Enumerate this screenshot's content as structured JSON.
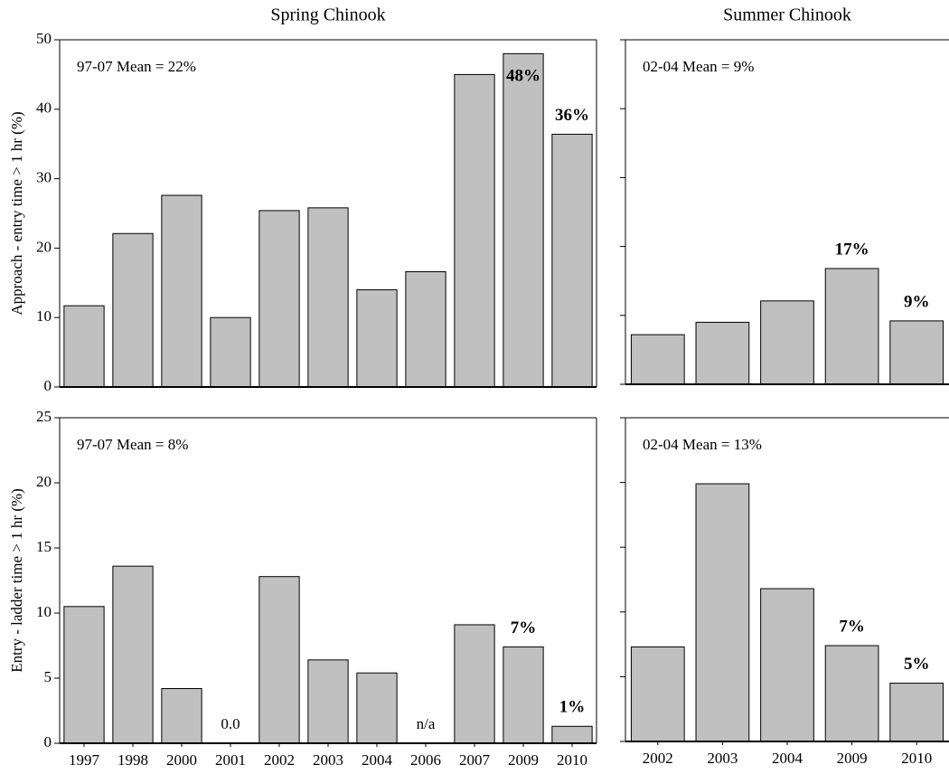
{
  "chart_data": [
    {
      "type": "bar",
      "title": "Spring Chinook",
      "y_label": "Approach - entry time > 1 hr (%)",
      "annotation": "97-07 Mean = 22%",
      "categories": [
        null,
        null,
        null,
        null,
        null,
        null,
        null,
        null,
        null,
        null,
        null
      ],
      "values": [
        11.7,
        22.1,
        27.6,
        10.0,
        25.4,
        25.8,
        14.0,
        16.6,
        45.0,
        48.0,
        36.4
      ],
      "value_labels": [
        null,
        null,
        null,
        null,
        null,
        null,
        null,
        null,
        null,
        "48%",
        "36%"
      ],
      "value_label_colors": [
        null,
        null,
        null,
        null,
        null,
        null,
        null,
        null,
        null,
        "#1a1aff",
        "#1a1aff"
      ],
      "color": "#c0c0c0",
      "ylim": [
        0,
        50
      ],
      "yticks": [
        0,
        10,
        20,
        30,
        40,
        50
      ],
      "ytick_labels": true
    },
    {
      "type": "bar",
      "title": "Summer Chinook",
      "annotation": "02-04 Mean = 9%",
      "categories": [
        null,
        null,
        null,
        null,
        null
      ],
      "values": [
        7.2,
        9.0,
        12.1,
        16.8,
        9.2
      ],
      "value_labels": [
        null,
        null,
        null,
        "17%",
        "9%"
      ],
      "value_label_colors": [
        null,
        null,
        null,
        "#1a1aff",
        "#1a1aff"
      ],
      "color": "#c0c0c0",
      "ylim": [
        0,
        50
      ],
      "yticks": [
        0,
        10,
        20,
        30,
        40,
        50
      ],
      "ytick_labels": false
    },
    {
      "type": "bar",
      "y_label": "Entry - ladder time > 1 hr (%)",
      "annotation": "97-07 Mean = 8%",
      "categories": [
        "1997",
        "1998",
        "2000",
        "2001",
        "2002",
        "2003",
        "2004",
        "2006",
        "2007",
        "2009",
        "2010"
      ],
      "values": [
        10.5,
        13.6,
        4.2,
        0,
        12.8,
        6.4,
        5.4,
        null,
        9.1,
        7.4,
        1.3
      ],
      "value_labels": [
        null,
        null,
        null,
        "0.0",
        null,
        null,
        null,
        "n/a",
        null,
        "7%",
        "1%"
      ],
      "value_label_colors": [
        null,
        null,
        null,
        "#000000",
        null,
        null,
        null,
        "#000000",
        null,
        "#1a1aff",
        "#1a1aff"
      ],
      "color": "#c0c0c0",
      "ylim": [
        0,
        25
      ],
      "yticks": [
        0,
        5,
        10,
        15,
        20,
        25
      ],
      "ytick_labels": true
    },
    {
      "type": "bar",
      "annotation": "02-04 Mean = 13%",
      "categories": [
        "2002",
        "2003",
        "2004",
        "2009",
        "2010"
      ],
      "values": [
        7.3,
        19.9,
        11.8,
        7.4,
        4.5
      ],
      "value_labels": [
        null,
        null,
        null,
        "7%",
        "5%"
      ],
      "value_label_colors": [
        null,
        null,
        null,
        "#1a1aff",
        "#1a1aff"
      ],
      "color": "#c0c0c0",
      "ylim": [
        0,
        25
      ],
      "yticks": [
        0,
        5,
        10,
        15,
        20,
        25
      ],
      "ytick_labels": false
    }
  ]
}
